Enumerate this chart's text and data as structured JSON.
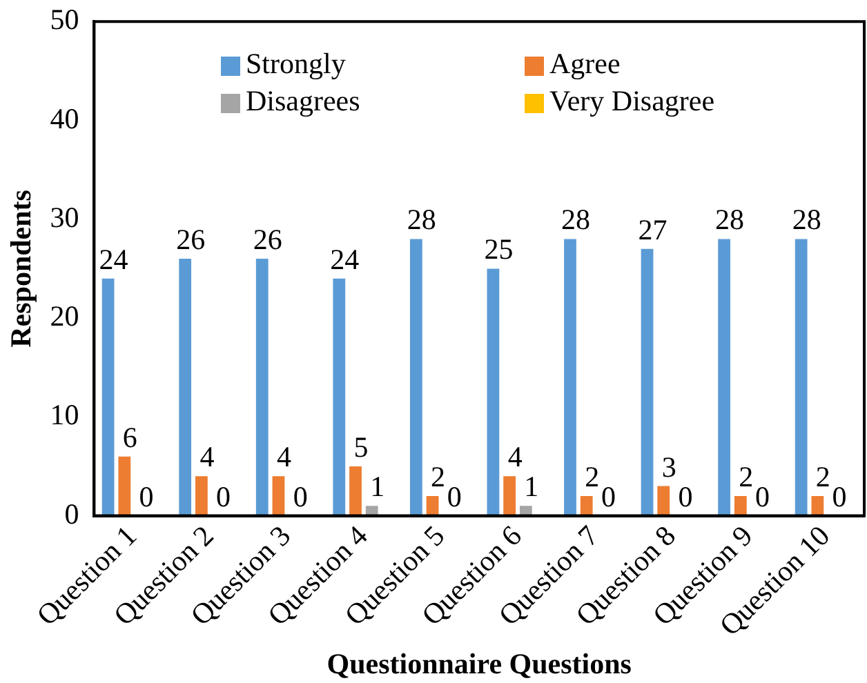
{
  "chart_data": {
    "type": "bar",
    "xlabel": "Questionnaire Questions",
    "ylabel": "Respondents",
    "categories": [
      "Question 1",
      "Question 2",
      "Question 3",
      "Question 4",
      "Question 5",
      "Question 6",
      "Question 7",
      "Question 8",
      "Question 9",
      "Question 10"
    ],
    "series": [
      {
        "name": "Strongly",
        "color": "#5b9bd5",
        "values": [
          24,
          26,
          26,
          24,
          28,
          25,
          28,
          27,
          28,
          28
        ],
        "value_labels": [
          "24",
          "26",
          "26",
          "24",
          "28",
          "25",
          "28",
          "27",
          "28",
          "28"
        ]
      },
      {
        "name": "Agree",
        "color": "#ed7d31",
        "values": [
          6,
          4,
          4,
          5,
          2,
          4,
          2,
          3,
          2,
          2
        ],
        "value_labels": [
          "6",
          "4",
          "4",
          "5",
          "2",
          "4",
          "2",
          "3",
          "2",
          "2"
        ]
      },
      {
        "name": "Disagrees",
        "color": "#a5a5a5",
        "values": [
          0,
          0,
          0,
          1,
          0,
          1,
          0,
          0,
          0,
          0
        ],
        "value_labels": [
          "0",
          "0",
          "0",
          "1",
          "0",
          "1",
          "0",
          "0",
          "0",
          "0"
        ]
      },
      {
        "name": "Very Disagree",
        "color": "#ffc000",
        "values": [
          0,
          0,
          0,
          0,
          0,
          0,
          0,
          0,
          0,
          0
        ]
      }
    ],
    "ylim": [
      0,
      50
    ],
    "yticks": [
      0,
      10,
      20,
      30,
      40,
      50
    ],
    "grid": false,
    "legend": "top"
  }
}
